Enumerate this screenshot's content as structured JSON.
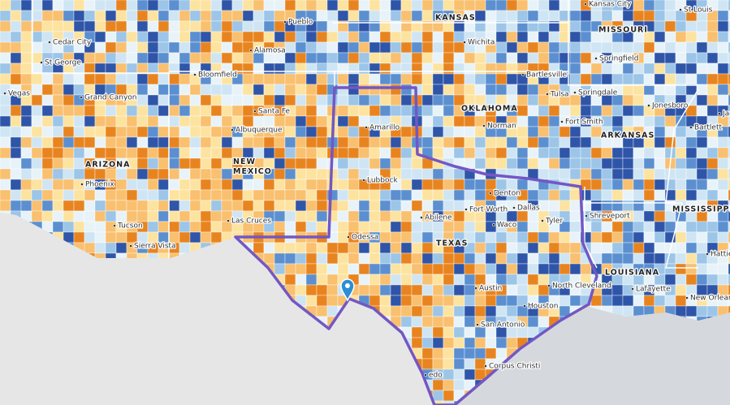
{
  "places": [
    "Cedar City",
    "St George",
    "Pueblo",
    "Alamosa",
    "Wichita",
    "Kansas City",
    "St Louis",
    "Springfield",
    "Vegas",
    "Grand Canyon",
    "Bloomfield",
    "Santa Fe",
    "Albuquerque",
    "Phoenix",
    "Tucson",
    "Sierra Vista",
    "Las Cruces",
    "Amarillo",
    "Lubbock",
    "Odessa",
    "Abilene",
    "Norman",
    "Tulsa",
    "Bartlesville",
    "Springdale",
    "Fort Smith",
    "Jonesboro",
    "Bartlett",
    "Jacks",
    "Fort Worth",
    "Denton",
    "Dallas",
    "Tyler",
    "Shreveport",
    "Waco",
    "Austin",
    "North Cleveland",
    "Houston",
    "San Antonio",
    "Lafayette",
    "New Orleans",
    "Hattiesburg",
    "Corpus Christi",
    "edo"
  ],
  "states": [
    "KANSAS",
    "MISSOURI",
    "ARIZONA",
    "NEW MEXICO",
    "OKLAHOMA",
    "ARKANSAS",
    "MISSISSIPPI",
    "TEXAS",
    "LOUISIANA"
  ]
}
